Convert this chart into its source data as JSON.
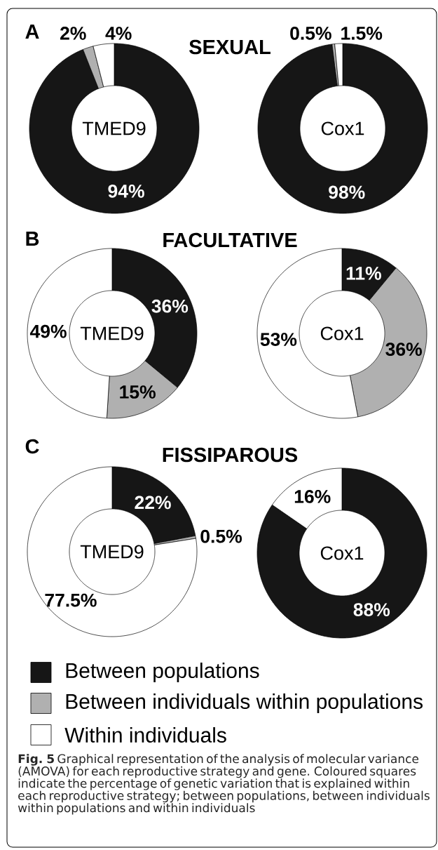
{
  "chart_data": [
    {
      "type": "donut",
      "title": "SEXUAL",
      "subtitle": "TMED9",
      "annotations": [
        "A"
      ],
      "categories": [
        null,
        null,
        null
      ],
      "values": [
        94,
        2,
        4
      ],
      "value_labels": [
        "94%",
        "2%",
        "4%"
      ],
      "colors": [
        "#161616",
        "#b0b0b0",
        "#ffffff"
      ]
    },
    {
      "type": "donut",
      "subtitle": "Cox1",
      "categories": [
        null,
        null,
        null
      ],
      "values": [
        98,
        0.5,
        1.5
      ],
      "value_labels": [
        "98%",
        "0.5%",
        "1.5%"
      ],
      "colors": [
        "#161616",
        "#b0b0b0",
        "#ffffff"
      ]
    },
    {
      "type": "donut",
      "title": "FACULTATIVE",
      "subtitle": "TMED9",
      "annotations": [
        "B"
      ],
      "categories": [
        null,
        null,
        null
      ],
      "values": [
        36,
        15,
        49
      ],
      "value_labels": [
        "36%",
        "15%",
        "49%"
      ],
      "colors": [
        "#161616",
        "#b0b0b0",
        "#ffffff"
      ]
    },
    {
      "type": "donut",
      "subtitle": "Cox1",
      "categories": [
        null,
        null,
        null
      ],
      "values": [
        11,
        36,
        53
      ],
      "value_labels": [
        "11%",
        "36%",
        "53%"
      ],
      "colors": [
        "#161616",
        "#b0b0b0",
        "#ffffff"
      ]
    },
    {
      "type": "donut",
      "title": "FISSIPAROUS",
      "subtitle": "TMED9",
      "annotations": [
        "C"
      ],
      "categories": [
        null,
        null,
        null
      ],
      "values": [
        22,
        0.5,
        77.5
      ],
      "value_labels": [
        "22%",
        "0.5%",
        "77.5%"
      ],
      "colors": [
        "#161616",
        "#b0b0b0",
        "#ffffff"
      ]
    },
    {
      "type": "donut",
      "subtitle": "Cox1",
      "annotations": [
        "**Fig. 5** Graphical representation of the analysis of molecular variance (AMOVA) for each reproductive strategy and gene. Coloured squares indicate the percentage of genetic variation that is explained within each reproductive strategy; between populations, between individuals within populations and within individuals"
      ],
      "categories": [
        "Between populations",
        "Between individuals within populations",
        "Within individuals"
      ],
      "values": [
        88,
        null,
        16
      ],
      "value_labels": [
        "88%",
        null,
        "16%"
      ],
      "colors": [
        "#161616",
        "#b0b0b0",
        "#ffffff"
      ],
      "legend": "bottom"
    }
  ]
}
